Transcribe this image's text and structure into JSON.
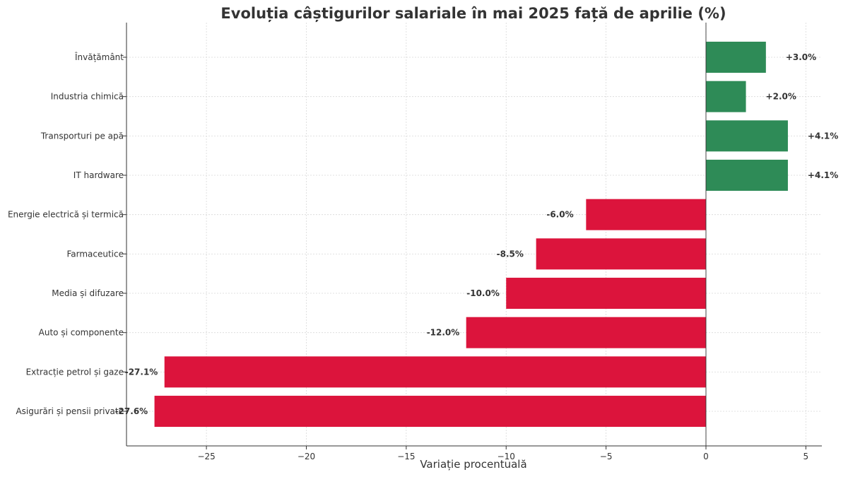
{
  "chart_data": {
    "type": "bar",
    "orientation": "horizontal",
    "title": "Evoluția câștigurilor salariale în mai 2025 față de aprilie (%)",
    "xlabel": "Variație procentuală",
    "ylabel": "",
    "xlim": [
      -29.0,
      5.8
    ],
    "xticks": [
      -25,
      -20,
      -15,
      -10,
      -5,
      0,
      5
    ],
    "xtick_labels": [
      "−25",
      "−20",
      "−15",
      "−10",
      "−5",
      "0",
      "5"
    ],
    "categories": [
      "Învățământ",
      "Industria chimică",
      "Transporturi pe apă",
      "IT hardware",
      "Energie electrică și termică",
      "Farmaceutice",
      "Media și difuzare",
      "Auto și componente",
      "Extracție petrol și gaze",
      "Asigurări și pensii private"
    ],
    "values": [
      3.0,
      2.0,
      4.1,
      4.1,
      -6.0,
      -8.5,
      -10.0,
      -12.0,
      -27.1,
      -27.6
    ],
    "data_labels": [
      "+3.0%",
      "+2.0%",
      "+4.1%",
      "+4.1%",
      "-6.0%",
      "-8.5%",
      "-10.0%",
      "-12.0%",
      "-27.1%",
      "-27.6%"
    ],
    "colors": {
      "positive": "#2e8b57",
      "negative": "#dc143c"
    },
    "grid": true,
    "legend": "none"
  }
}
